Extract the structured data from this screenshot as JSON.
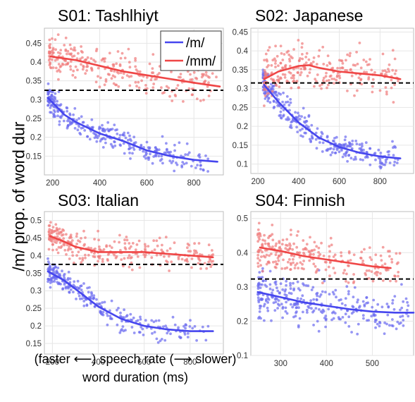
{
  "figure": {
    "ylabel": "/m/ prop. of word dur",
    "xlabel_line1": "(faster ⟵) speech rate (⟶ slower)",
    "xlabel_line2": "word duration (ms)"
  },
  "colors": {
    "m": "#4646ee",
    "mm": "#ef4646",
    "m_dots": "#6a6af0",
    "mm_dots": "#f07a7a"
  },
  "chart_data": [
    {
      "type": "scatter",
      "title": "S01: Tashlhiyt",
      "xlim": [
        165,
        925
      ],
      "ylim": [
        0.1,
        0.49
      ],
      "xticks": [
        200,
        400,
        600,
        800
      ],
      "yticks": [
        0.15,
        0.2,
        0.25,
        0.3,
        0.35,
        0.4,
        0.45
      ],
      "reference_line": 0.325,
      "legend": {
        "position": "top-right",
        "entries": [
          "/m/",
          "/mm/"
        ]
      },
      "series": [
        {
          "name": "/m/",
          "fit": [
            [
              180,
              0.305
            ],
            [
              250,
              0.26
            ],
            [
              300,
              0.24
            ],
            [
              400,
              0.21
            ],
            [
              500,
              0.19
            ],
            [
              600,
              0.165
            ],
            [
              700,
              0.15
            ],
            [
              800,
              0.14
            ],
            [
              900,
              0.135
            ]
          ],
          "dots": {
            "n": 300,
            "x_range": [
              180,
              860
            ],
            "spread": 0.025
          }
        },
        {
          "name": "/mm/",
          "fit": [
            [
              190,
              0.415
            ],
            [
              300,
              0.405
            ],
            [
              400,
              0.39
            ],
            [
              500,
              0.375
            ],
            [
              600,
              0.365
            ],
            [
              700,
              0.355
            ],
            [
              800,
              0.345
            ],
            [
              910,
              0.335
            ]
          ],
          "dots": {
            "n": 260,
            "x_range": [
              185,
              900
            ],
            "spread": 0.035
          }
        }
      ]
    },
    {
      "type": "scatter",
      "title": "S02: Japanese",
      "xlim": [
        165,
        965
      ],
      "ylim": [
        0.075,
        0.46
      ],
      "xticks": [
        200,
        400,
        600,
        800
      ],
      "yticks": [
        0.1,
        0.15,
        0.2,
        0.25,
        0.3,
        0.35,
        0.4,
        0.45
      ],
      "reference_line": 0.315,
      "series": [
        {
          "name": "/m/",
          "fit": [
            [
              230,
              0.31
            ],
            [
              300,
              0.265
            ],
            [
              400,
              0.21
            ],
            [
              500,
              0.17
            ],
            [
              600,
              0.145
            ],
            [
              700,
              0.13
            ],
            [
              800,
              0.12
            ],
            [
              900,
              0.115
            ]
          ],
          "dots": {
            "n": 300,
            "x_range": [
              225,
              890
            ],
            "spread": 0.025
          }
        },
        {
          "name": "/mm/",
          "fit": [
            [
              230,
              0.325
            ],
            [
              300,
              0.345
            ],
            [
              400,
              0.36
            ],
            [
              450,
              0.362
            ],
            [
              500,
              0.355
            ],
            [
              600,
              0.345
            ],
            [
              700,
              0.34
            ],
            [
              800,
              0.335
            ],
            [
              900,
              0.325
            ]
          ],
          "dots": {
            "n": 260,
            "x_range": [
              230,
              900
            ],
            "spread": 0.045
          }
        }
      ]
    },
    {
      "type": "scatter",
      "title": "S03: Italian",
      "xlim": [
        165,
        945
      ],
      "ylim": [
        0.12,
        0.525
      ],
      "xticks": [
        200,
        400,
        600,
        800
      ],
      "yticks": [
        0.15,
        0.2,
        0.25,
        0.3,
        0.35,
        0.4,
        0.45,
        0.5
      ],
      "reference_line": 0.375,
      "series": [
        {
          "name": "/m/",
          "fit": [
            [
              180,
              0.355
            ],
            [
              250,
              0.33
            ],
            [
              300,
              0.305
            ],
            [
              400,
              0.255
            ],
            [
              500,
              0.22
            ],
            [
              600,
              0.2
            ],
            [
              700,
              0.19
            ],
            [
              800,
              0.185
            ],
            [
              900,
              0.185
            ]
          ],
          "dots": {
            "n": 260,
            "x_range": [
              180,
              880
            ],
            "spread": 0.025
          }
        },
        {
          "name": "/mm/",
          "fit": [
            [
              190,
              0.455
            ],
            [
              250,
              0.44
            ],
            [
              300,
              0.425
            ],
            [
              400,
              0.41
            ],
            [
              500,
              0.41
            ],
            [
              600,
              0.41
            ],
            [
              700,
              0.405
            ],
            [
              800,
              0.4
            ],
            [
              900,
              0.395
            ]
          ],
          "dots": {
            "n": 280,
            "x_range": [
              185,
              900
            ],
            "spread": 0.03
          }
        }
      ]
    },
    {
      "type": "scatter",
      "title": "S04: Finnish",
      "xlim": [
        235,
        590
      ],
      "ylim": [
        0.1,
        0.52
      ],
      "xticks": [
        300,
        400,
        500
      ],
      "yticks": [
        0.1,
        0.2,
        0.3,
        0.4,
        0.5
      ],
      "reference_line": 0.323,
      "series": [
        {
          "name": "/m/",
          "fit": [
            [
              250,
              0.285
            ],
            [
              300,
              0.27
            ],
            [
              350,
              0.255
            ],
            [
              400,
              0.245
            ],
            [
              450,
              0.235
            ],
            [
              500,
              0.228
            ],
            [
              550,
              0.225
            ],
            [
              590,
              0.225
            ]
          ],
          "dots": {
            "n": 300,
            "x_range": [
              250,
              580
            ],
            "spread": 0.05
          }
        },
        {
          "name": "/mm/",
          "fit": [
            [
              255,
              0.415
            ],
            [
              300,
              0.405
            ],
            [
              350,
              0.39
            ],
            [
              400,
              0.38
            ],
            [
              450,
              0.37
            ],
            [
              500,
              0.36
            ],
            [
              540,
              0.355
            ]
          ],
          "dots": {
            "n": 260,
            "x_range": [
              250,
              560
            ],
            "spread": 0.045
          }
        }
      ]
    }
  ]
}
